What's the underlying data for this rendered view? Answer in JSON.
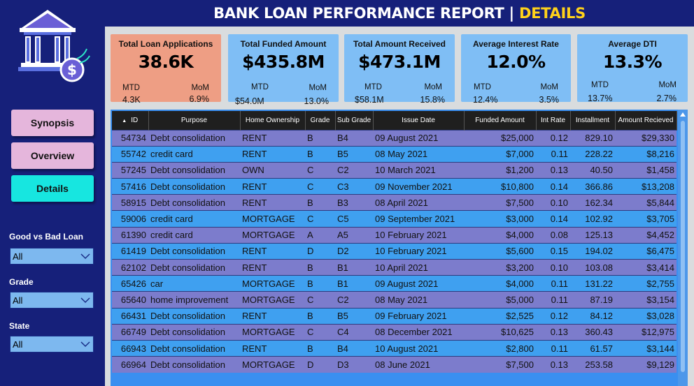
{
  "header": {
    "title_main": "BANK LOAN PERFORMANCE REPORT | ",
    "title_accent": "DETAILS"
  },
  "colors": {
    "background": "#16207a",
    "accent_yellow": "#ffd21a",
    "card_blue": "#7fbef5",
    "card_orange": "#ee9e84",
    "nav_pink": "#e5b6dc",
    "nav_cyan": "#17e6e0",
    "row_purple": "#7c7ccc",
    "row_blue": "#3fa0f0"
  },
  "logo": {
    "icon": "bank-dollar-icon"
  },
  "nav": {
    "synopsis": "Synopsis",
    "overview": "Overview",
    "details": "Details",
    "active": "Details"
  },
  "filters": [
    {
      "label": "Good vs Bad Loan",
      "value": "All"
    },
    {
      "label": "Grade",
      "value": "All"
    },
    {
      "label": "State",
      "value": "All"
    }
  ],
  "kpis": [
    {
      "title": "Total Loan Applications",
      "value": "38.6K",
      "mtd_label": "MTD",
      "mom_label": "MoM",
      "mtd": "4.3K",
      "mom": "6.9%"
    },
    {
      "title": "Total Funded Amount",
      "value": "$435.8M",
      "mtd_label": "MTD",
      "mom_label": "MoM",
      "mtd": "$54.0M",
      "mom": "13.0%"
    },
    {
      "title": "Total Amount Received",
      "value": "$473.1M",
      "mtd_label": "MTD",
      "mom_label": "MoM",
      "mtd": "$58.1M",
      "mom": "15.8%"
    },
    {
      "title": "Average Interest Rate",
      "value": "12.0%",
      "mtd_label": "MTD",
      "mom_label": "MoM",
      "mtd": "12.4%",
      "mom": "3.5%"
    },
    {
      "title": "Average DTI",
      "value": "13.3%",
      "mtd_label": "MTD",
      "mom_label": "MoM",
      "mtd": "13.7%",
      "mom": "2.7%"
    }
  ],
  "table": {
    "columns": [
      "ID",
      "Purpose",
      "Home Ownership",
      "Grade",
      "Sub Grade",
      "Issue Date",
      "Funded Amount",
      "Int Rate",
      "Installment",
      "Amount Recieved"
    ],
    "rows": [
      [
        "54734",
        "Debt consolidation",
        "RENT",
        "B",
        "B4",
        "09 August 2021",
        "$25,000",
        "0.12",
        "829.10",
        "$29,330"
      ],
      [
        "55742",
        "credit card",
        "RENT",
        "B",
        "B5",
        "08 May 2021",
        "$7,000",
        "0.11",
        "228.22",
        "$8,216"
      ],
      [
        "57245",
        "Debt consolidation",
        "OWN",
        "C",
        "C2",
        "10 March 2021",
        "$1,200",
        "0.13",
        "40.50",
        "$1,458"
      ],
      [
        "57416",
        "Debt consolidation",
        "RENT",
        "C",
        "C3",
        "09 November 2021",
        "$10,800",
        "0.14",
        "366.86",
        "$13,208"
      ],
      [
        "58915",
        "Debt consolidation",
        "RENT",
        "B",
        "B3",
        "08 April 2021",
        "$7,500",
        "0.10",
        "162.34",
        "$5,844"
      ],
      [
        "59006",
        "credit card",
        "MORTGAGE",
        "C",
        "C5",
        "09 September 2021",
        "$3,000",
        "0.14",
        "102.92",
        "$3,705"
      ],
      [
        "61390",
        "credit card",
        "MORTGAGE",
        "A",
        "A5",
        "10 February 2021",
        "$4,000",
        "0.08",
        "125.13",
        "$4,452"
      ],
      [
        "61419",
        "Debt consolidation",
        "RENT",
        "D",
        "D2",
        "10 February 2021",
        "$5,600",
        "0.15",
        "194.02",
        "$6,475"
      ],
      [
        "62102",
        "Debt consolidation",
        "RENT",
        "B",
        "B1",
        "10 April 2021",
        "$3,200",
        "0.10",
        "103.08",
        "$3,414"
      ],
      [
        "65426",
        "car",
        "MORTGAGE",
        "B",
        "B1",
        "09 August 2021",
        "$4,000",
        "0.11",
        "131.22",
        "$2,755"
      ],
      [
        "65640",
        "home improvement",
        "MORTGAGE",
        "C",
        "C2",
        "08 May 2021",
        "$5,000",
        "0.11",
        "87.19",
        "$3,154"
      ],
      [
        "66431",
        "Debt consolidation",
        "RENT",
        "B",
        "B5",
        "09 February 2021",
        "$2,525",
        "0.12",
        "84.12",
        "$3,028"
      ],
      [
        "66749",
        "Debt consolidation",
        "MORTGAGE",
        "C",
        "C4",
        "08 December 2021",
        "$10,625",
        "0.13",
        "360.43",
        "$12,975"
      ],
      [
        "66943",
        "Debt consolidation",
        "RENT",
        "B",
        "B4",
        "10 August 2021",
        "$2,800",
        "0.11",
        "61.57",
        "$3,144"
      ],
      [
        "66964",
        "Debt consolidation",
        "MORTGAGE",
        "D",
        "D3",
        "08 June 2021",
        "$7,500",
        "0.13",
        "253.58",
        "$9,129"
      ]
    ]
  }
}
